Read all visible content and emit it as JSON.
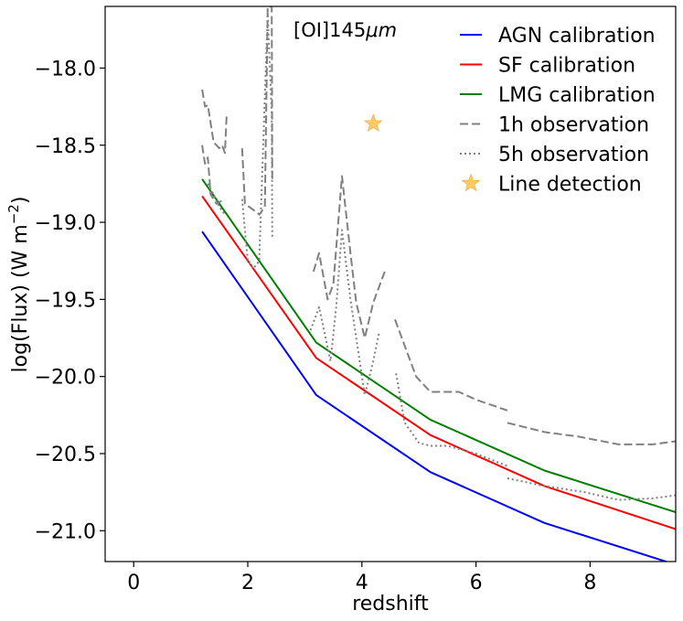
{
  "chart_data": {
    "type": "line",
    "annotation": "[OI]145",
    "annotation_unit": "μm",
    "xlabel": "redshift",
    "ylabel_main": "log(Flux) (W m",
    "ylabel_exp": "−2",
    "ylabel_close": ")",
    "xlim": [
      -0.5,
      9.5
    ],
    "ylim": [
      -21.2,
      -17.6
    ],
    "xticks": [
      0,
      2,
      4,
      6,
      8
    ],
    "xtick_labels": [
      "0",
      "2",
      "4",
      "6",
      "8"
    ],
    "yticks": [
      -18.0,
      -18.5,
      -19.0,
      -19.5,
      -20.0,
      -20.5,
      -21.0
    ],
    "ytick_labels": [
      "−18.0",
      "−18.5",
      "−19.0",
      "−19.5",
      "−20.0",
      "−20.5",
      "−21.0"
    ],
    "legend_position": "top-right",
    "series": [
      {
        "name": "AGN calibration",
        "color": "#0000ff",
        "style": "solid",
        "points": [
          [
            1.2,
            -19.06
          ],
          [
            3.2,
            -20.12
          ],
          [
            5.2,
            -20.62
          ],
          [
            7.2,
            -20.95
          ],
          [
            9.5,
            -21.22
          ]
        ]
      },
      {
        "name": "SF calibration",
        "color": "#ff0000",
        "style": "solid",
        "points": [
          [
            1.2,
            -18.83
          ],
          [
            3.2,
            -19.88
          ],
          [
            5.2,
            -20.38
          ],
          [
            7.2,
            -20.71
          ],
          [
            9.5,
            -20.99
          ]
        ]
      },
      {
        "name": "LMG calibration",
        "color": "#008000",
        "style": "solid",
        "points": [
          [
            1.2,
            -18.72
          ],
          [
            3.2,
            -19.78
          ],
          [
            5.2,
            -20.28
          ],
          [
            7.2,
            -20.61
          ],
          [
            9.5,
            -20.88
          ]
        ]
      },
      {
        "name": "1h observation",
        "color": "#808080",
        "style": "dashed",
        "segments": [
          [
            [
              1.2,
              -18.14
            ],
            [
              1.25,
              -18.25
            ],
            [
              1.3,
              -18.24
            ],
            [
              1.4,
              -18.48
            ],
            [
              1.5,
              -18.52
            ],
            [
              1.55,
              -18.5
            ],
            [
              1.6,
              -18.55
            ],
            [
              1.63,
              -18.3
            ]
          ],
          [
            [
              1.2,
              -18.5
            ],
            [
              1.25,
              -18.62
            ],
            [
              1.3,
              -18.58
            ],
            [
              1.35,
              -18.82
            ],
            [
              1.45,
              -18.88
            ],
            [
              1.55,
              -18.86
            ]
          ],
          [
            [
              1.9,
              -18.52
            ],
            [
              1.95,
              -18.88
            ],
            [
              2.1,
              -18.92
            ],
            [
              2.2,
              -18.95
            ],
            [
              2.3,
              -18.9
            ],
            [
              2.35,
              -17.6
            ],
            [
              2.42,
              -17.6
            ],
            [
              2.43,
              -18.72
            ]
          ],
          [
            [
              3.15,
              -19.32
            ],
            [
              3.25,
              -19.2
            ],
            [
              3.4,
              -19.5
            ],
            [
              3.5,
              -19.4
            ],
            [
              3.65,
              -18.7
            ],
            [
              3.8,
              -19.2
            ],
            [
              3.9,
              -19.52
            ],
            [
              4.05,
              -19.75
            ],
            [
              4.2,
              -19.52
            ],
            [
              4.4,
              -19.32
            ]
          ],
          [
            [
              4.58,
              -19.63
            ],
            [
              4.75,
              -19.8
            ],
            [
              4.95,
              -20.0
            ],
            [
              5.2,
              -20.1
            ],
            [
              5.45,
              -20.1
            ],
            [
              5.7,
              -20.1
            ],
            [
              6.0,
              -20.15
            ],
            [
              6.55,
              -20.22
            ]
          ],
          [
            [
              6.55,
              -20.3
            ],
            [
              7.2,
              -20.36
            ],
            [
              7.8,
              -20.39
            ],
            [
              8.5,
              -20.44
            ],
            [
              9.1,
              -20.44
            ],
            [
              9.5,
              -20.42
            ]
          ]
        ]
      },
      {
        "name": "5h observation",
        "color": "#808080",
        "style": "dotted",
        "segments": [
          [
            [
              1.3,
              -18.75
            ],
            [
              1.4,
              -18.82
            ],
            [
              1.5,
              -18.9
            ],
            [
              1.6,
              -18.95
            ]
          ],
          [
            [
              1.9,
              -18.85
            ],
            [
              2.0,
              -19.25
            ],
            [
              2.1,
              -19.3
            ],
            [
              2.2,
              -19.25
            ],
            [
              2.35,
              -17.65
            ],
            [
              2.42,
              -18.3
            ],
            [
              2.43,
              -19.1
            ]
          ],
          [
            [
              3.1,
              -19.7
            ],
            [
              3.25,
              -19.55
            ],
            [
              3.45,
              -19.9
            ],
            [
              3.55,
              -19.55
            ],
            [
              3.65,
              -19.05
            ],
            [
              3.8,
              -19.5
            ],
            [
              3.9,
              -19.75
            ],
            [
              4.05,
              -20.12
            ],
            [
              4.2,
              -19.9
            ],
            [
              4.3,
              -19.72
            ]
          ],
          [
            [
              4.6,
              -19.98
            ],
            [
              4.75,
              -20.3
            ],
            [
              5.0,
              -20.43
            ],
            [
              5.2,
              -20.45
            ],
            [
              5.5,
              -20.45
            ],
            [
              6.0,
              -20.5
            ],
            [
              6.55,
              -20.58
            ]
          ],
          [
            [
              6.55,
              -20.66
            ],
            [
              7.2,
              -20.71
            ],
            [
              7.9,
              -20.75
            ],
            [
              8.5,
              -20.8
            ],
            [
              9.1,
              -20.79
            ],
            [
              9.5,
              -20.77
            ]
          ]
        ]
      },
      {
        "name": "Line detection",
        "color": "#ffc04d",
        "style": "marker-star",
        "points": [
          [
            4.2,
            -18.36
          ]
        ]
      }
    ]
  }
}
